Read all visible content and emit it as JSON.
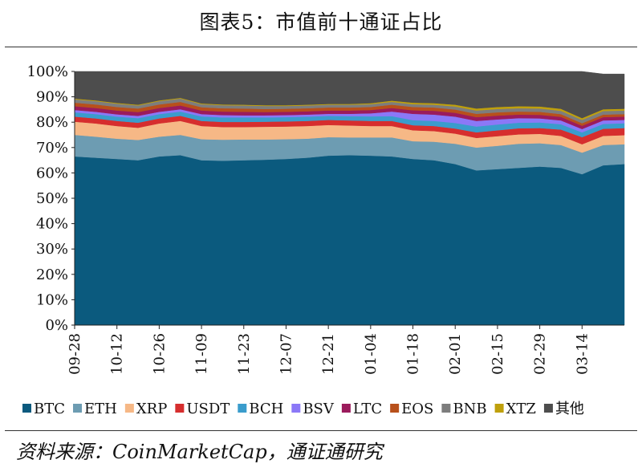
{
  "title": "图表5：市值前十通证占比",
  "source": "资料来源：CoinMarketCap，通证通研究",
  "chart_data": {
    "type": "area",
    "stacked": true,
    "ylim": [
      0,
      100
    ],
    "y_ticks": [
      "0%",
      "10%",
      "20%",
      "30%",
      "40%",
      "50%",
      "60%",
      "70%",
      "80%",
      "90%",
      "100%"
    ],
    "x": [
      "09-28",
      "10-05",
      "10-12",
      "10-19",
      "10-26",
      "11-02",
      "11-09",
      "11-16",
      "11-23",
      "11-30",
      "12-07",
      "12-14",
      "12-21",
      "12-28",
      "01-04",
      "01-11",
      "01-18",
      "01-25",
      "02-01",
      "02-08",
      "02-15",
      "02-22",
      "02-29",
      "03-07",
      "03-14",
      "03-21",
      "03-25"
    ],
    "x_tick_labels": [
      "09-28",
      "10-12",
      "10-26",
      "11-09",
      "11-23",
      "12-07",
      "12-21",
      "01-04",
      "01-18",
      "02-01",
      "02-15",
      "02-29",
      "03-14"
    ],
    "legend_position": "bottom",
    "series": [
      {
        "name": "BTC",
        "color": "#0b5a7e",
        "values": [
          66.5,
          66,
          65.5,
          65,
          66.5,
          67,
          65,
          64.8,
          65,
          65.2,
          65.5,
          66,
          66.8,
          67,
          66.8,
          66.5,
          65.5,
          65,
          63.5,
          61,
          61.5,
          62,
          62.5,
          62,
          59.5,
          63,
          63.5
        ]
      },
      {
        "name": "ETH",
        "color": "#6d9cb2",
        "values": [
          8.5,
          8.3,
          8.0,
          8.0,
          7.8,
          8.0,
          8.3,
          8.3,
          8.2,
          8.0,
          7.8,
          7.5,
          7.3,
          7.0,
          7.2,
          7.5,
          7.0,
          7.3,
          8.0,
          9.0,
          9.2,
          9.5,
          9.2,
          9.0,
          8.5,
          8.0,
          7.8
        ]
      },
      {
        "name": "XRP",
        "color": "#f6b886",
        "values": [
          5.2,
          5.2,
          5.0,
          4.8,
          5.2,
          5.5,
          5.2,
          5.0,
          4.9,
          5.0,
          5.0,
          5.0,
          4.8,
          4.7,
          4.5,
          4.5,
          4.3,
          4.2,
          4.0,
          3.8,
          3.8,
          3.7,
          3.7,
          3.6,
          3.3,
          3.6,
          3.6
        ]
      },
      {
        "name": "USDT",
        "color": "#d62e2e",
        "values": [
          2.0,
          2.0,
          2.0,
          2.0,
          2.0,
          2.0,
          2.0,
          2.0,
          2.0,
          2.0,
          2.0,
          2.0,
          2.0,
          2.0,
          2.0,
          2.0,
          2.0,
          2.0,
          2.0,
          2.2,
          2.3,
          2.4,
          2.3,
          2.5,
          2.8,
          2.8,
          2.8
        ]
      },
      {
        "name": "BCH",
        "color": "#3a9ccc",
        "values": [
          1.7,
          1.7,
          1.7,
          1.8,
          1.7,
          1.7,
          1.8,
          1.8,
          1.8,
          1.7,
          1.7,
          1.7,
          1.6,
          1.7,
          1.8,
          1.9,
          2.0,
          2.0,
          2.2,
          2.3,
          2.3,
          2.2,
          2.2,
          2.1,
          1.9,
          1.9,
          1.9
        ]
      },
      {
        "name": "BSV",
        "color": "#8b78f7",
        "values": [
          0.9,
          0.9,
          0.9,
          0.9,
          0.9,
          0.9,
          0.9,
          0.9,
          0.8,
          0.8,
          0.8,
          0.8,
          0.8,
          0.9,
          1.2,
          1.8,
          2.5,
          2.5,
          2.5,
          2.2,
          2.0,
          1.8,
          1.6,
          1.5,
          1.3,
          1.4,
          1.3
        ]
      },
      {
        "name": "LTC",
        "color": "#9b1b5c",
        "values": [
          1.5,
          1.5,
          1.5,
          1.5,
          1.5,
          1.5,
          1.4,
          1.4,
          1.4,
          1.3,
          1.3,
          1.3,
          1.3,
          1.3,
          1.3,
          1.4,
          1.4,
          1.5,
          1.5,
          1.5,
          1.5,
          1.4,
          1.4,
          1.4,
          1.3,
          1.3,
          1.3
        ]
      },
      {
        "name": "EOS",
        "color": "#b8501b",
        "values": [
          1.4,
          1.4,
          1.4,
          1.4,
          1.4,
          1.4,
          1.3,
          1.3,
          1.3,
          1.2,
          1.2,
          1.2,
          1.2,
          1.2,
          1.2,
          1.3,
          1.3,
          1.3,
          1.3,
          1.3,
          1.3,
          1.2,
          1.2,
          1.1,
          1.0,
          1.0,
          1.0
        ]
      },
      {
        "name": "BNB",
        "color": "#7d7d7d",
        "values": [
          1.3,
          1.3,
          1.3,
          1.2,
          1.3,
          1.3,
          1.2,
          1.2,
          1.2,
          1.2,
          1.1,
          1.1,
          1.1,
          1.1,
          1.1,
          1.1,
          1.1,
          1.1,
          1.2,
          1.3,
          1.3,
          1.3,
          1.3,
          1.3,
          1.3,
          1.4,
          1.4
        ]
      },
      {
        "name": "XTZ",
        "color": "#bfa00c",
        "values": [
          0.3,
          0.3,
          0.3,
          0.3,
          0.3,
          0.3,
          0.3,
          0.3,
          0.3,
          0.3,
          0.3,
          0.3,
          0.3,
          0.3,
          0.4,
          0.5,
          0.6,
          0.6,
          0.7,
          0.8,
          0.8,
          0.8,
          0.8,
          0.8,
          0.7,
          0.7,
          0.7
        ]
      },
      {
        "name": "其他",
        "color": "#4d4d4d",
        "values": [
          10.7,
          11.4,
          12.4,
          13.1,
          11.4,
          10.4,
          12.6,
          13.0,
          13.1,
          13.3,
          13.3,
          13.1,
          12.8,
          12.8,
          12.5,
          11.5,
          12.3,
          12.5,
          13.1,
          14.6,
          14.0,
          13.7,
          13.8,
          14.7,
          18.4,
          13.9,
          13.7
        ]
      }
    ]
  }
}
